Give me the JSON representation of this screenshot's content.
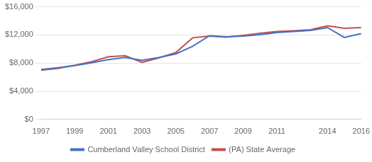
{
  "chart_data": {
    "type": "line",
    "x": [
      1997,
      1998,
      1999,
      2000,
      2001,
      2002,
      2003,
      2004,
      2005,
      2006,
      2007,
      2008,
      2009,
      2010,
      2011,
      2012,
      2013,
      2014,
      2015,
      2016
    ],
    "series": [
      {
        "name": "Cumberland Valley School District",
        "color": "#4472c4",
        "values": [
          7100,
          7350,
          7650,
          8050,
          8500,
          8800,
          8400,
          8800,
          9300,
          10400,
          11900,
          11750,
          11850,
          12050,
          12350,
          12500,
          12650,
          13050,
          11650,
          12200
        ]
      },
      {
        "name": "(PA) State Average",
        "color": "#c0504d",
        "values": [
          7000,
          7250,
          7700,
          8200,
          8900,
          9050,
          8100,
          8750,
          9500,
          11600,
          11850,
          11700,
          11950,
          12250,
          12500,
          12600,
          12750,
          13300,
          12950,
          13050
        ]
      }
    ],
    "xlim": [
      1997,
      2016
    ],
    "xticks": [
      1997,
      1999,
      2001,
      2003,
      2005,
      2007,
      2009,
      2011,
      2014,
      2016
    ],
    "ylim": [
      0,
      16000
    ],
    "yticks": [
      {
        "value": 0,
        "label": "$0"
      },
      {
        "value": 4000,
        "label": "$4,000"
      },
      {
        "value": 8000,
        "label": "$8,000"
      },
      {
        "value": 12000,
        "label": "$12,000"
      },
      {
        "value": 16000,
        "label": "$16,000"
      }
    ],
    "grid": "y",
    "legend": "bottom"
  }
}
